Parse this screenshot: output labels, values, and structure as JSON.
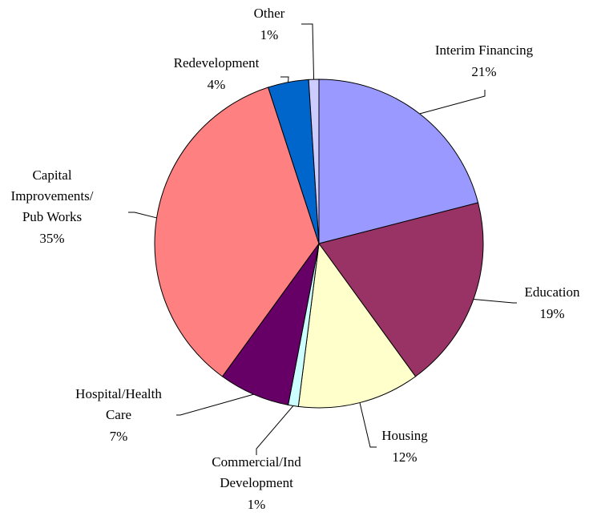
{
  "chart_data": {
    "type": "pie",
    "categories": [
      "Interim Financing",
      "Education",
      "Housing",
      "Commercial/Ind\nDevelopment",
      "Hospital/Health\nCare",
      "Capital\nImprovements/\nPub Works",
      "Redevelopment",
      "Other"
    ],
    "values": [
      21,
      19,
      12,
      1,
      7,
      35,
      4,
      1
    ],
    "value_labels": [
      "21%",
      "19%",
      "12%",
      "1%",
      "7%",
      "35%",
      "4%",
      "1%"
    ],
    "colors": [
      "#9999ff",
      "#993366",
      "#ffffcc",
      "#ccffff",
      "#660066",
      "#ff8080",
      "#0066cc",
      "#ccccff"
    ]
  }
}
